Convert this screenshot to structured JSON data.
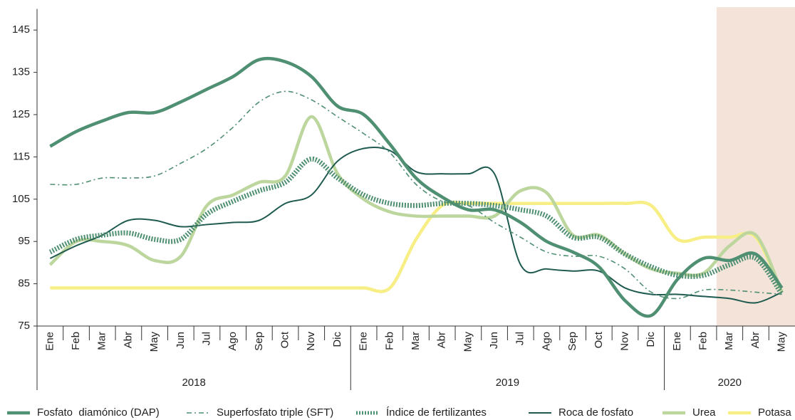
{
  "chart_data": {
    "type": "line",
    "categories": [
      "Ene",
      "Feb",
      "Mar",
      "Abr",
      "May",
      "Jun",
      "Jul",
      "Ago",
      "Sep",
      "Oct",
      "Nov",
      "Dic",
      "Ene",
      "Feb",
      "Mar",
      "Abr",
      "May",
      "Jun",
      "Jul",
      "Ago",
      "Sep",
      "Oct",
      "Nov",
      "Dic",
      "Ene",
      "Feb",
      "Mar",
      "Abr",
      "May"
    ],
    "years": [
      "2018",
      "2019",
      "2020"
    ],
    "ylim": [
      75,
      150
    ],
    "yticks": [
      75,
      85,
      95,
      105,
      115,
      125,
      135,
      145
    ],
    "series": [
      {
        "name": "Fosfato  diamónico (DAP)",
        "color": "#4f8f72",
        "style": "solid-thick",
        "values": [
          117.5,
          121,
          123.5,
          125.5,
          125.5,
          128,
          131,
          134,
          138,
          137.5,
          134,
          127,
          125,
          118,
          110,
          105.5,
          102.5,
          102.5,
          99.5,
          95,
          92.5,
          89,
          81,
          77.5,
          86,
          91,
          90.5,
          92,
          84
        ]
      },
      {
        "name": "Superfosfato triple (SFT)",
        "color": "#4f8f72",
        "style": "dashdot",
        "values": [
          108.5,
          108.5,
          110,
          110,
          110.5,
          113.5,
          117,
          122,
          128,
          130.5,
          128.5,
          124.5,
          120.5,
          116,
          108.5,
          104.5,
          103.5,
          99.5,
          96,
          92.5,
          91.5,
          91.5,
          88.5,
          83,
          81.5,
          83.5,
          83.5,
          83,
          82.5
        ]
      },
      {
        "name": "Índice de fertilizantes",
        "color": "#4f8f72",
        "style": "dotted-thick",
        "values": [
          92.5,
          95.5,
          96.5,
          97,
          95.5,
          95.5,
          101.5,
          104.5,
          107,
          109,
          114.5,
          110,
          106,
          104,
          103.5,
          104,
          104,
          103.5,
          102.5,
          101,
          96,
          96,
          92,
          89,
          87,
          87,
          89.5,
          91,
          82.5
        ]
      },
      {
        "name": "Roca de fosfato",
        "color": "#1e5a4f",
        "style": "solid",
        "values": [
          91,
          94,
          96.5,
          100,
          100,
          98.5,
          99,
          99.5,
          100,
          104,
          106,
          114,
          117,
          116.5,
          111.5,
          111,
          111,
          111,
          89.5,
          88.5,
          88,
          88,
          84,
          82.5,
          82.5,
          82,
          81.5,
          80.5,
          83
        ]
      },
      {
        "name": "Urea",
        "color": "#bcd69e",
        "style": "solid-thick",
        "values": [
          89.5,
          95,
          95,
          94,
          90.5,
          91.5,
          103.5,
          106,
          109,
          110.5,
          124.5,
          111,
          105,
          102,
          101,
          101,
          101,
          101,
          107,
          106.5,
          96.5,
          96.5,
          92,
          88.5,
          87.5,
          87.5,
          94,
          96.5,
          83
        ]
      },
      {
        "name": "Potasa",
        "color": "#f7ef86",
        "style": "solid-thick",
        "values": [
          84,
          84,
          84,
          84,
          84,
          84,
          84,
          84,
          84,
          84,
          84,
          84,
          84,
          84,
          95.5,
          103.5,
          104,
          104,
          104,
          104,
          104,
          104,
          104,
          103.5,
          95.5,
          96,
          96,
          96,
          83
        ]
      }
    ]
  }
}
